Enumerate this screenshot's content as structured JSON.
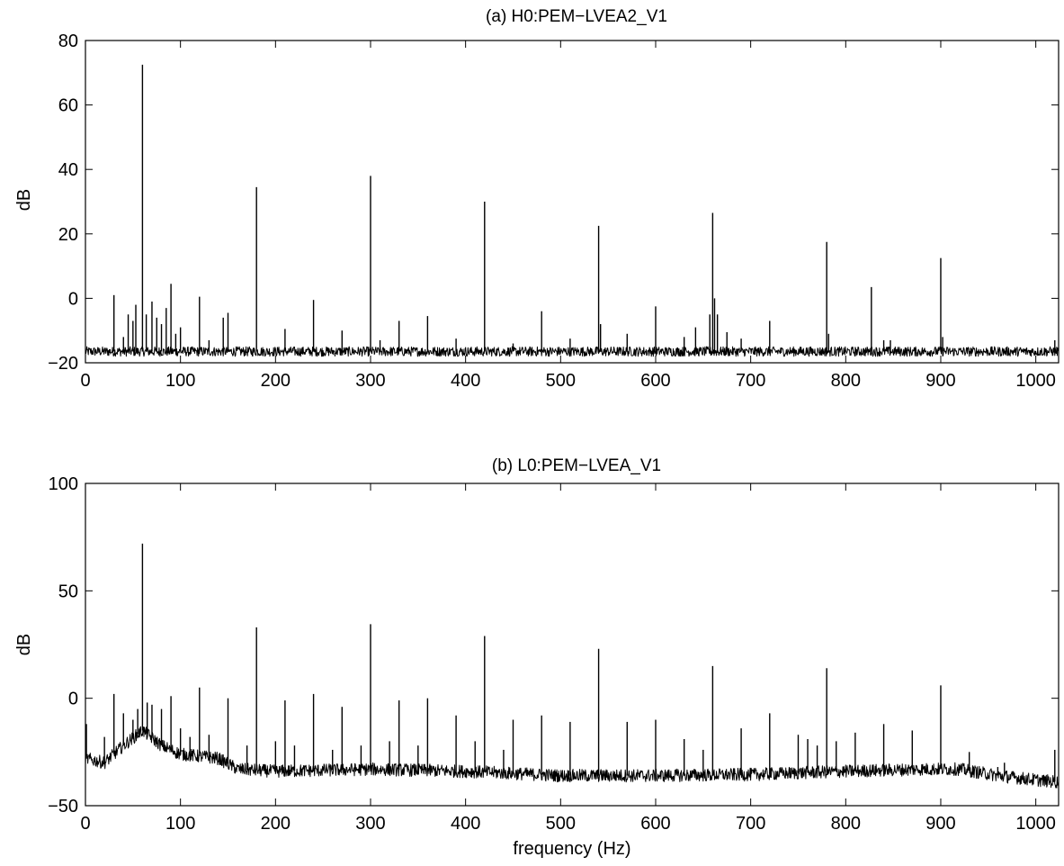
{
  "chart_data": [
    {
      "type": "line",
      "title": "(a) H0:PEM−LVEA2_V1",
      "xlabel": "",
      "ylabel": "dB",
      "xlim": [
        0,
        1024
      ],
      "ylim": [
        -20,
        80
      ],
      "xticks": [
        "0",
        "100",
        "200",
        "300",
        "400",
        "500",
        "600",
        "700",
        "800",
        "900",
        "1000"
      ],
      "yticks": [
        "−20",
        "0",
        "20",
        "40",
        "60",
        "80"
      ],
      "noise_floor": -16.5,
      "noise_amplitude": 1.5,
      "grid": false,
      "spikes": [
        {
          "x": 30,
          "y": 1
        },
        {
          "x": 40,
          "y": -12
        },
        {
          "x": 45,
          "y": -5
        },
        {
          "x": 50,
          "y": -7
        },
        {
          "x": 53,
          "y": -2
        },
        {
          "x": 60,
          "y": 72.5
        },
        {
          "x": 64,
          "y": -5
        },
        {
          "x": 70,
          "y": -1
        },
        {
          "x": 75,
          "y": -6
        },
        {
          "x": 80,
          "y": -8
        },
        {
          "x": 85,
          "y": -3
        },
        {
          "x": 90,
          "y": 4.5
        },
        {
          "x": 95,
          "y": -11
        },
        {
          "x": 100,
          "y": -9
        },
        {
          "x": 120,
          "y": 0.5
        },
        {
          "x": 130,
          "y": -13
        },
        {
          "x": 145,
          "y": -6
        },
        {
          "x": 150,
          "y": -4.5
        },
        {
          "x": 180,
          "y": 34.5
        },
        {
          "x": 210,
          "y": -9.5
        },
        {
          "x": 240,
          "y": -0.5
        },
        {
          "x": 270,
          "y": -10
        },
        {
          "x": 300,
          "y": 38
        },
        {
          "x": 310,
          "y": -13
        },
        {
          "x": 330,
          "y": -7
        },
        {
          "x": 360,
          "y": -5.5
        },
        {
          "x": 390,
          "y": -12.5
        },
        {
          "x": 420,
          "y": 30
        },
        {
          "x": 450,
          "y": -14
        },
        {
          "x": 480,
          "y": -4
        },
        {
          "x": 510,
          "y": -12.5
        },
        {
          "x": 540,
          "y": 22.5
        },
        {
          "x": 542,
          "y": -8
        },
        {
          "x": 570,
          "y": -11
        },
        {
          "x": 600,
          "y": -2.5
        },
        {
          "x": 630,
          "y": -12
        },
        {
          "x": 642,
          "y": -9
        },
        {
          "x": 657,
          "y": -5
        },
        {
          "x": 660,
          "y": 26.5
        },
        {
          "x": 662,
          "y": 0
        },
        {
          "x": 665,
          "y": -5
        },
        {
          "x": 675,
          "y": -10.5
        },
        {
          "x": 690,
          "y": -12.5
        },
        {
          "x": 720,
          "y": -7
        },
        {
          "x": 780,
          "y": 17.5
        },
        {
          "x": 782,
          "y": -11
        },
        {
          "x": 827,
          "y": 3.5
        },
        {
          "x": 840,
          "y": -13
        },
        {
          "x": 847,
          "y": -13
        },
        {
          "x": 900,
          "y": 12.5
        },
        {
          "x": 902,
          "y": -12
        },
        {
          "x": 1020,
          "y": -13
        }
      ]
    },
    {
      "type": "line",
      "title": "(b) L0:PEM−LVEA_V1",
      "xlabel": "frequency (Hz)",
      "ylabel": "dB",
      "xlim": [
        0,
        1024
      ],
      "ylim": [
        -50,
        100
      ],
      "xticks": [
        "0",
        "100",
        "200",
        "300",
        "400",
        "500",
        "600",
        "700",
        "800",
        "900",
        "1000"
      ],
      "yticks": [
        "−50",
        "0",
        "50",
        "100"
      ],
      "noise_floor_profile": [
        [
          0,
          -28
        ],
        [
          20,
          -30
        ],
        [
          40,
          -22
        ],
        [
          60,
          -15
        ],
        [
          80,
          -22
        ],
        [
          100,
          -26
        ],
        [
          140,
          -28
        ],
        [
          160,
          -33
        ],
        [
          200,
          -34
        ],
        [
          300,
          -33
        ],
        [
          400,
          -34
        ],
        [
          500,
          -36
        ],
        [
          600,
          -36
        ],
        [
          700,
          -35.5
        ],
        [
          800,
          -34
        ],
        [
          880,
          -33
        ],
        [
          920,
          -33
        ],
        [
          960,
          -36
        ],
        [
          1000,
          -38
        ],
        [
          1024,
          -39
        ]
      ],
      "noise_amplitude": 3,
      "grid": false,
      "spikes": [
        {
          "x": 1,
          "y": -12
        },
        {
          "x": 20,
          "y": -18
        },
        {
          "x": 30,
          "y": 2
        },
        {
          "x": 40,
          "y": -7
        },
        {
          "x": 50,
          "y": -10
        },
        {
          "x": 55,
          "y": -5
        },
        {
          "x": 60,
          "y": 72
        },
        {
          "x": 65,
          "y": -2
        },
        {
          "x": 70,
          "y": -3
        },
        {
          "x": 80,
          "y": -5
        },
        {
          "x": 90,
          "y": 1
        },
        {
          "x": 100,
          "y": -14
        },
        {
          "x": 110,
          "y": -18
        },
        {
          "x": 120,
          "y": 5
        },
        {
          "x": 130,
          "y": -17
        },
        {
          "x": 150,
          "y": 0
        },
        {
          "x": 170,
          "y": -22
        },
        {
          "x": 180,
          "y": 33
        },
        {
          "x": 200,
          "y": -20
        },
        {
          "x": 210,
          "y": -1
        },
        {
          "x": 220,
          "y": -22
        },
        {
          "x": 240,
          "y": 2
        },
        {
          "x": 260,
          "y": -24
        },
        {
          "x": 270,
          "y": -4
        },
        {
          "x": 290,
          "y": -22
        },
        {
          "x": 300,
          "y": 34.5
        },
        {
          "x": 320,
          "y": -20
        },
        {
          "x": 330,
          "y": -1
        },
        {
          "x": 350,
          "y": -22
        },
        {
          "x": 360,
          "y": 0
        },
        {
          "x": 390,
          "y": -8
        },
        {
          "x": 410,
          "y": -20
        },
        {
          "x": 420,
          "y": 29
        },
        {
          "x": 440,
          "y": -24
        },
        {
          "x": 450,
          "y": -10
        },
        {
          "x": 480,
          "y": -8
        },
        {
          "x": 510,
          "y": -11
        },
        {
          "x": 540,
          "y": 23
        },
        {
          "x": 570,
          "y": -11
        },
        {
          "x": 600,
          "y": -10
        },
        {
          "x": 630,
          "y": -19
        },
        {
          "x": 650,
          "y": -24
        },
        {
          "x": 660,
          "y": 15
        },
        {
          "x": 690,
          "y": -14
        },
        {
          "x": 720,
          "y": -7
        },
        {
          "x": 750,
          "y": -17
        },
        {
          "x": 760,
          "y": -19
        },
        {
          "x": 770,
          "y": -22
        },
        {
          "x": 780,
          "y": 14
        },
        {
          "x": 790,
          "y": -20
        },
        {
          "x": 810,
          "y": -16
        },
        {
          "x": 840,
          "y": -12
        },
        {
          "x": 870,
          "y": -15
        },
        {
          "x": 900,
          "y": 6
        },
        {
          "x": 930,
          "y": -25
        },
        {
          "x": 960,
          "y": -32
        },
        {
          "x": 967,
          "y": -30
        },
        {
          "x": 1020,
          "y": -24
        }
      ]
    }
  ]
}
